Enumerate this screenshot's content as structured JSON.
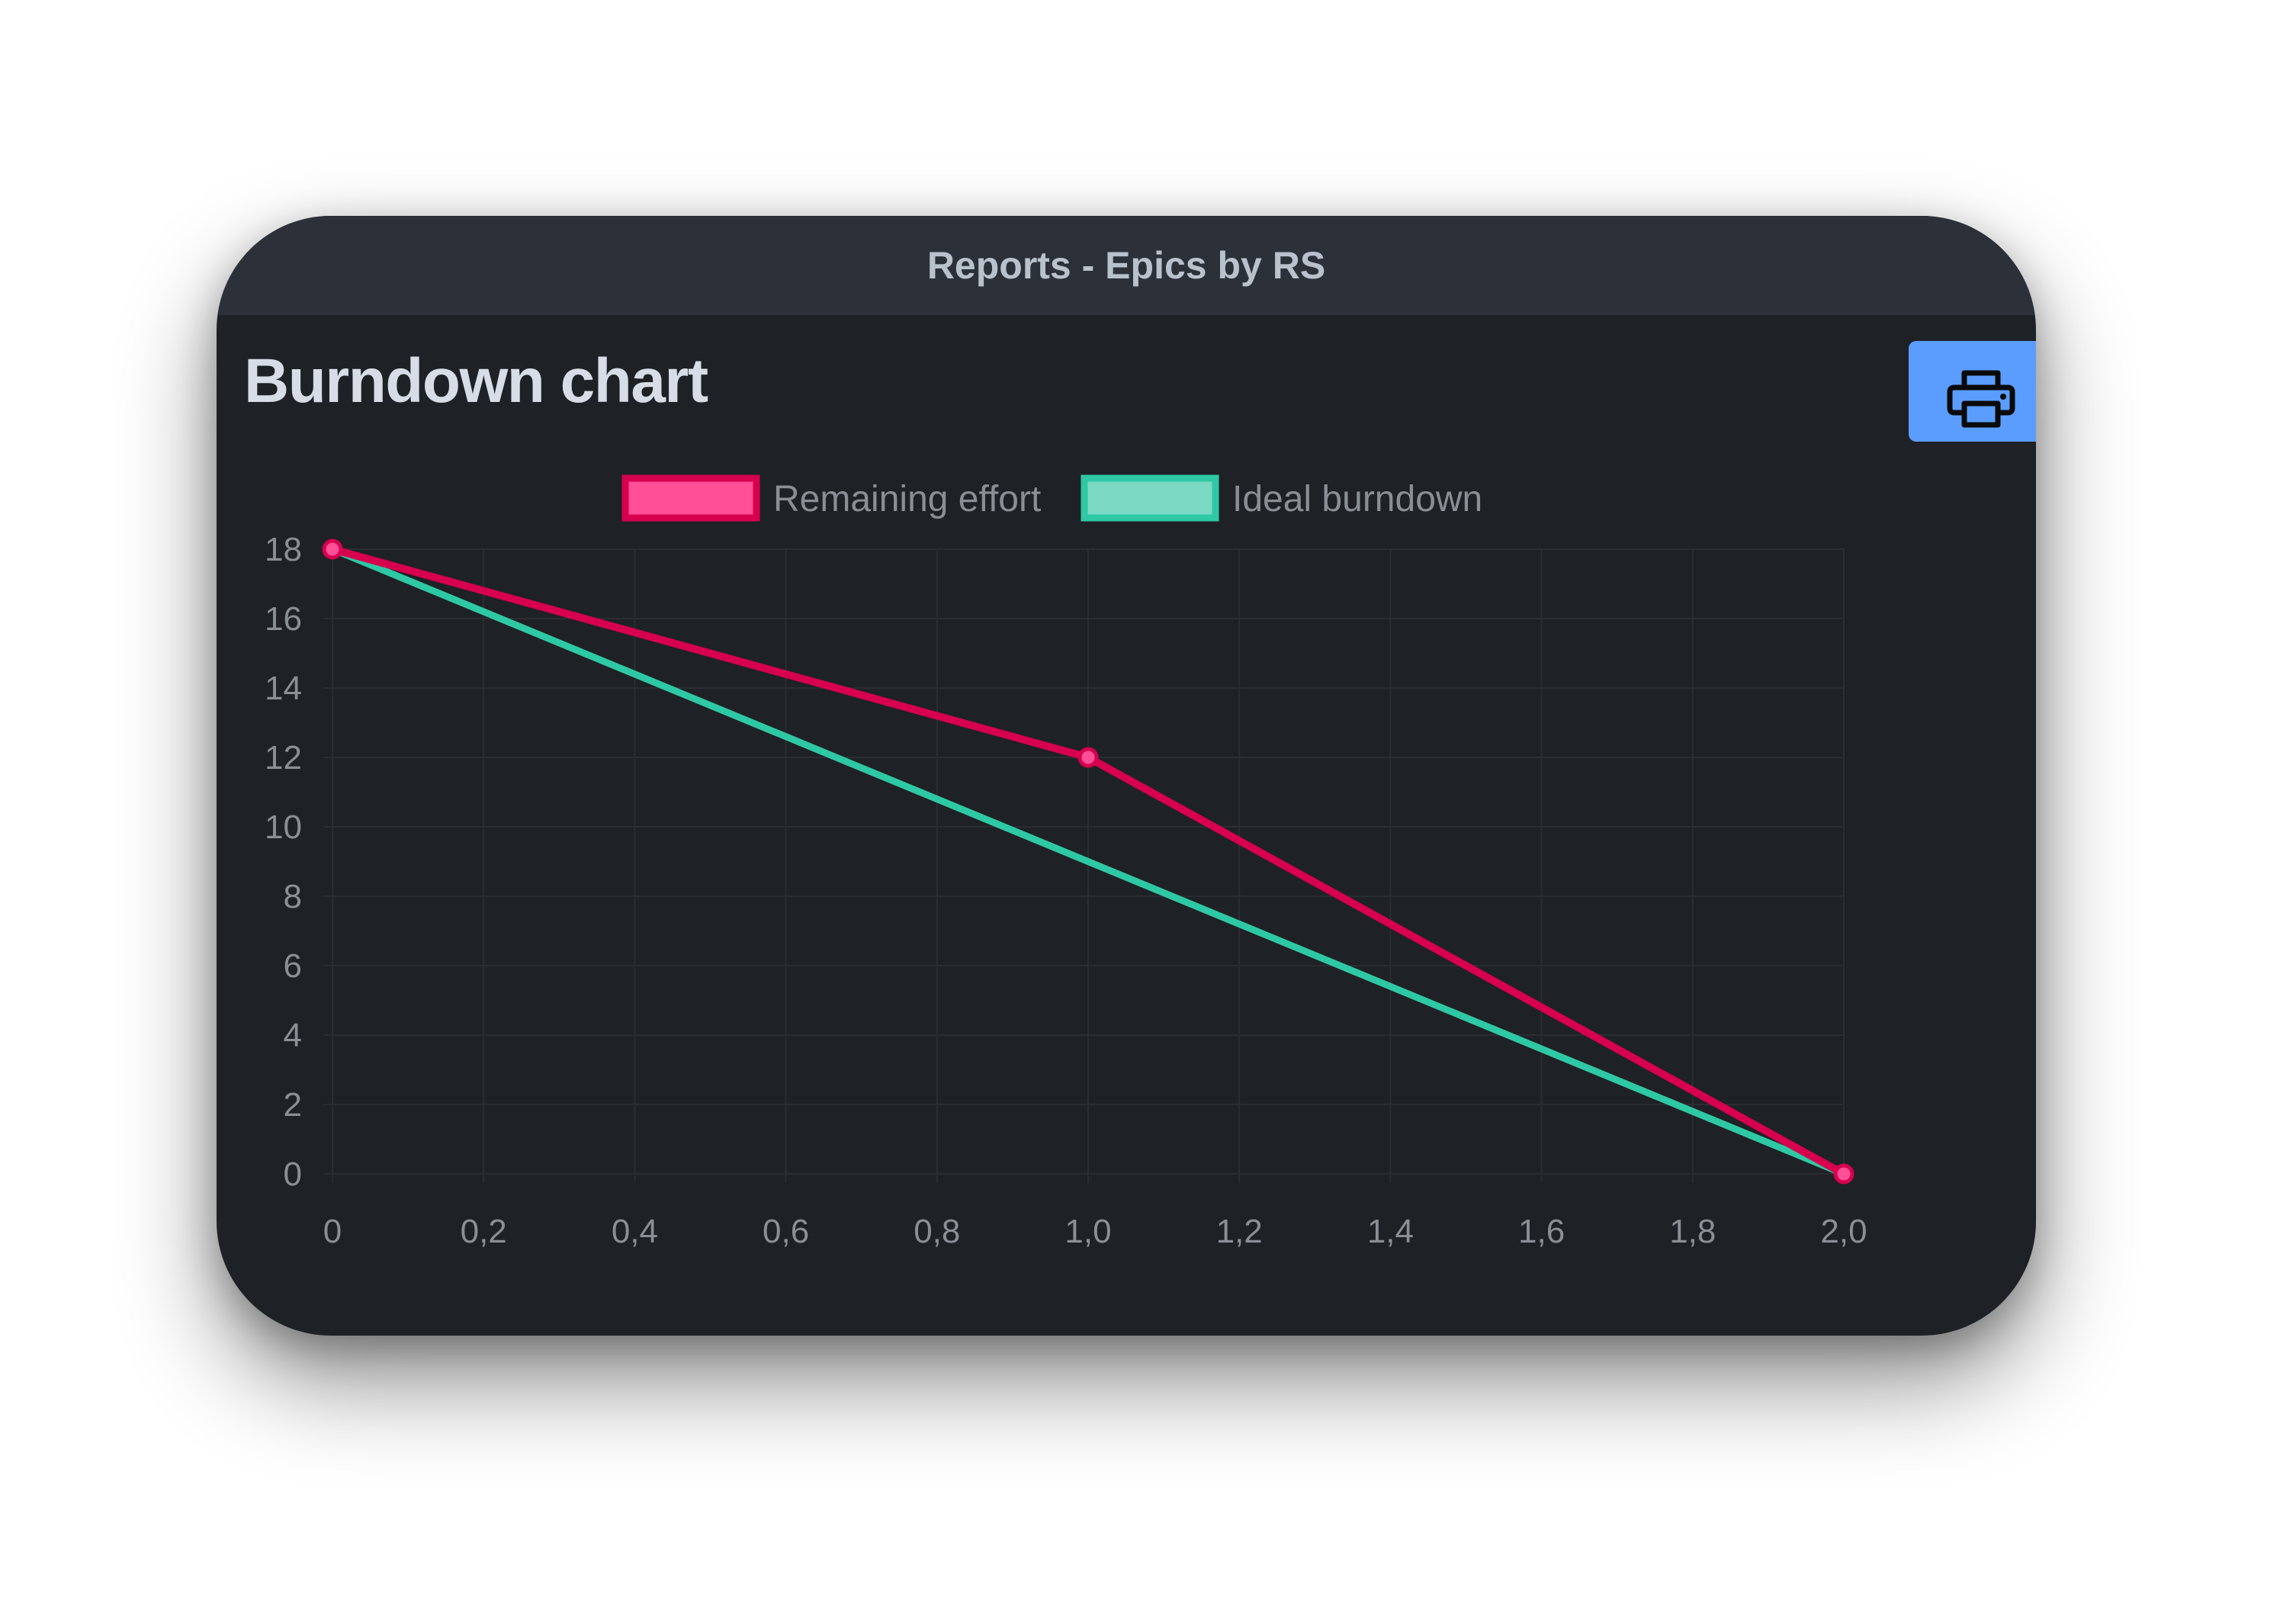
{
  "window": {
    "title": "Reports - Epics by RS"
  },
  "page": {
    "heading": "Burndown chart"
  },
  "toolbar": {
    "print_icon": "printer-icon"
  },
  "colors": {
    "titlebar_bg": "#2c3139",
    "panel_bg": "#1e2125",
    "print_button": "#5b9dff",
    "remaining_line": "#d6004f",
    "remaining_fill": "#ff4f96",
    "ideal_line": "#2ec9a4",
    "ideal_fill": "#7bd9c3"
  },
  "chart_data": {
    "type": "line",
    "title": "",
    "xlabel": "",
    "ylabel": "",
    "xlim": [
      0,
      2
    ],
    "ylim": [
      0,
      18
    ],
    "x_ticks": [
      "0",
      "0,2",
      "0,4",
      "0,6",
      "0,8",
      "1,0",
      "1,2",
      "1,4",
      "1,6",
      "1,8",
      "2,0"
    ],
    "y_ticks": [
      "0",
      "2",
      "4",
      "6",
      "8",
      "10",
      "12",
      "14",
      "16",
      "18"
    ],
    "grid": true,
    "legend_position": "top",
    "series": [
      {
        "name": "Remaining effort",
        "x": [
          0,
          1,
          2
        ],
        "values": [
          18,
          12,
          0
        ],
        "markers": true
      },
      {
        "name": "Ideal burndown",
        "x": [
          0,
          2
        ],
        "values": [
          18,
          0
        ],
        "markers": false
      }
    ]
  }
}
